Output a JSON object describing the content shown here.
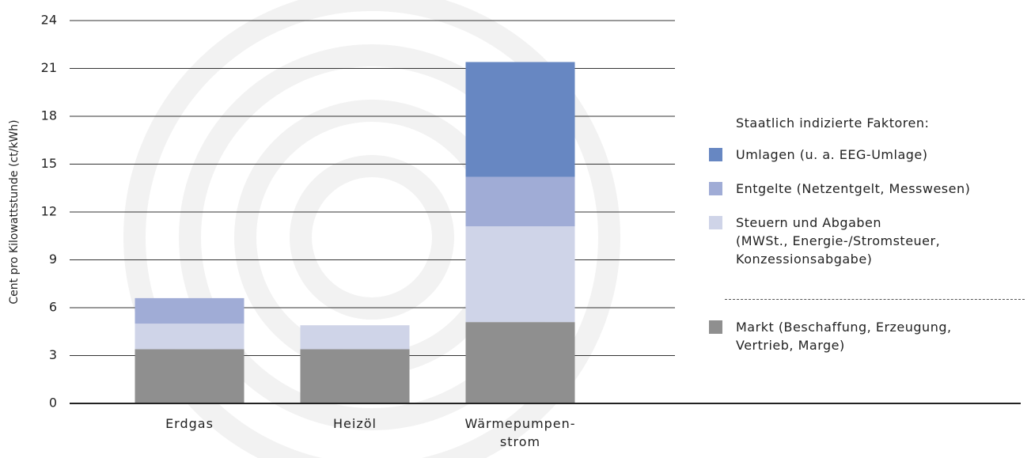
{
  "chart_data": {
    "type": "bar",
    "stacked": true,
    "y_label": "Cent pro Kilowattstunde (ct/kWh)",
    "categories": [
      "Erdgas",
      "Heizöl",
      "Wärmepumpen-\nstrom"
    ],
    "legend_title": "Staatlich indizierte Faktoren:",
    "series": [
      {
        "name": "Markt (Beschaffung, Erzeugung,\nVertrieb, Marge)",
        "color": "#8f8f8f",
        "values": [
          3.4,
          3.4,
          5.1
        ]
      },
      {
        "name": "Steuern und Abgaben\n(MWSt., Energie-/Stromsteuer,\nKonzessionsabgabe)",
        "color": "#cfd4e8",
        "values": [
          1.6,
          1.5,
          6.0
        ]
      },
      {
        "name": "Entgelte (Netzentgelt, Messwesen)",
        "color": "#a0acd6",
        "values": [
          1.6,
          0,
          3.1
        ]
      },
      {
        "name": "Umlagen (u. a. EEG-Umlage)",
        "color": "#6787c2",
        "values": [
          0,
          0,
          7.2
        ]
      }
    ],
    "ylim": [
      0,
      24
    ],
    "yticks": [
      0,
      3,
      6,
      9,
      12,
      15,
      18,
      21,
      24
    ],
    "grid": true
  }
}
